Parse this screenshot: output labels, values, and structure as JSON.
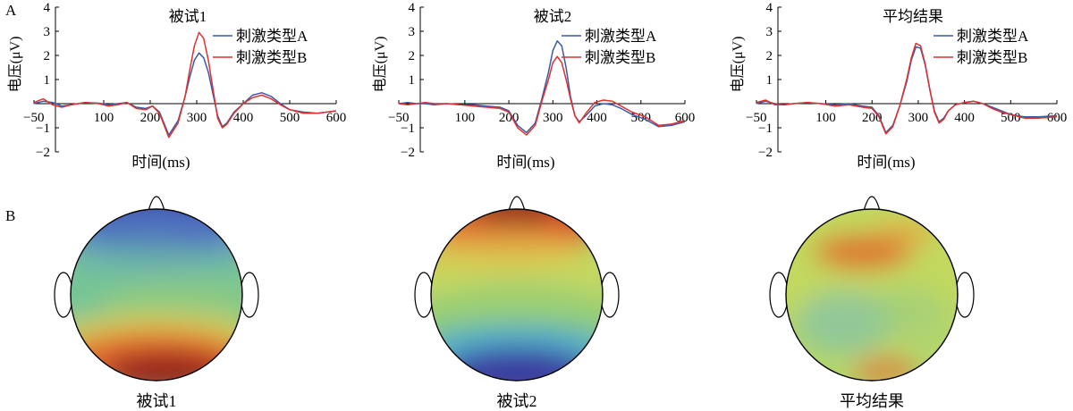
{
  "panels": {
    "a": "A",
    "b": "B"
  },
  "chart_data": [
    {
      "type": "line",
      "title": "被试1",
      "xlabel": "时间(ms)",
      "ylabel": "电压(μV)",
      "xlim": [
        -50,
        600
      ],
      "ylim": [
        -2,
        4
      ],
      "xticks": [
        -50,
        100,
        200,
        300,
        400,
        500,
        600
      ],
      "yticks": [
        -2,
        -1,
        1,
        2,
        3,
        4
      ],
      "legend_position": "top-right",
      "series": [
        {
          "name": "刺激类型A",
          "color": "#3a5aa6",
          "x": [
            -50,
            -30,
            -10,
            10,
            30,
            60,
            90,
            110,
            130,
            150,
            170,
            190,
            205,
            220,
            240,
            260,
            275,
            285,
            295,
            305,
            315,
            325,
            335,
            345,
            355,
            365,
            380,
            400,
            420,
            440,
            460,
            480,
            500,
            530,
            560,
            600
          ],
          "y": [
            0,
            0.1,
            0.05,
            -0.1,
            -0.05,
            0.05,
            0.02,
            -0.05,
            0,
            0.05,
            -0.15,
            -0.2,
            -0.1,
            -0.35,
            -1.3,
            -0.7,
            0.3,
            1.1,
            1.8,
            2.1,
            1.9,
            1.3,
            0.4,
            -0.5,
            -0.95,
            -0.8,
            -0.35,
            0,
            0.35,
            0.45,
            0.3,
            0,
            -0.25,
            -0.35,
            -0.4,
            -0.3
          ]
        },
        {
          "name": "刺激类型B",
          "color": "#e03030",
          "x": [
            -50,
            -30,
            -10,
            10,
            30,
            60,
            90,
            110,
            130,
            150,
            170,
            190,
            205,
            220,
            240,
            260,
            275,
            285,
            295,
            305,
            315,
            325,
            335,
            345,
            355,
            365,
            380,
            400,
            420,
            440,
            460,
            480,
            500,
            530,
            560,
            600
          ],
          "y": [
            0.05,
            0.2,
            -0.05,
            -0.15,
            -0.05,
            0.05,
            0,
            -0.1,
            -0.05,
            0.05,
            -0.2,
            -0.25,
            -0.1,
            -0.4,
            -1.4,
            -0.8,
            0.3,
            1.4,
            2.4,
            2.95,
            2.7,
            1.8,
            0.6,
            -0.6,
            -1.0,
            -0.85,
            -0.4,
            0,
            0.25,
            0.35,
            0.2,
            -0.05,
            -0.25,
            -0.4,
            -0.4,
            -0.3
          ]
        }
      ]
    },
    {
      "type": "line",
      "title": "被试2",
      "xlabel": "时间(ms)",
      "ylabel": "电压(μV)",
      "xlim": [
        -50,
        600
      ],
      "ylim": [
        -2,
        4
      ],
      "xticks": [
        -50,
        100,
        200,
        300,
        400,
        500,
        600
      ],
      "yticks": [
        -2,
        -1,
        1,
        2,
        3,
        4
      ],
      "legend_position": "top-right",
      "series": [
        {
          "name": "刺激类型A",
          "color": "#3a5aa6",
          "x": [
            -50,
            -30,
            -10,
            10,
            30,
            60,
            90,
            120,
            150,
            180,
            200,
            220,
            240,
            260,
            275,
            290,
            300,
            310,
            320,
            330,
            340,
            350,
            360,
            375,
            395,
            415,
            435,
            455,
            480,
            510,
            540,
            570,
            600
          ],
          "y": [
            0,
            0.05,
            0,
            0,
            -0.05,
            0,
            -0.05,
            -0.05,
            -0.1,
            -0.15,
            -0.3,
            -0.9,
            -1.2,
            -0.8,
            0.2,
            1.3,
            2.2,
            2.6,
            2.4,
            1.5,
            0.3,
            -0.5,
            -0.75,
            -0.5,
            -0.1,
            0,
            -0.05,
            -0.2,
            -0.45,
            -0.65,
            -0.95,
            -0.9,
            -0.75
          ]
        },
        {
          "name": "刺激类型B",
          "color": "#e03030",
          "x": [
            -50,
            -30,
            -10,
            10,
            30,
            60,
            90,
            120,
            150,
            180,
            200,
            220,
            240,
            260,
            275,
            290,
            300,
            310,
            320,
            330,
            340,
            350,
            360,
            375,
            395,
            415,
            435,
            455,
            480,
            510,
            540,
            570,
            600
          ],
          "y": [
            0,
            -0.05,
            0,
            0.05,
            0,
            0,
            -0.05,
            -0.1,
            -0.15,
            -0.2,
            -0.35,
            -1.0,
            -1.3,
            -0.9,
            0.1,
            1.0,
            1.7,
            1.95,
            1.7,
            1.0,
            0.2,
            -0.5,
            -0.8,
            -0.4,
            0.05,
            0.15,
            0.1,
            -0.1,
            -0.35,
            -0.55,
            -0.9,
            -0.85,
            -0.7
          ]
        }
      ]
    },
    {
      "type": "line",
      "title": "平均结果",
      "xlabel": "时间(ms)",
      "ylabel": "电压(μV)",
      "xlim": [
        -50,
        600
      ],
      "ylim": [
        -2,
        4
      ],
      "xticks": [
        -50,
        100,
        200,
        300,
        400,
        500,
        600
      ],
      "yticks": [
        -2,
        -1,
        1,
        2,
        3,
        4
      ],
      "legend_position": "top-right",
      "series": [
        {
          "name": "刺激类型A",
          "color": "#3a5aa6",
          "x": [
            -50,
            -30,
            -10,
            10,
            30,
            60,
            90,
            120,
            150,
            180,
            200,
            215,
            230,
            245,
            260,
            275,
            285,
            295,
            305,
            315,
            325,
            335,
            345,
            355,
            365,
            380,
            400,
            420,
            440,
            460,
            480,
            500,
            530,
            560,
            600
          ],
          "y": [
            0,
            0.1,
            0,
            -0.05,
            0,
            0.05,
            0,
            -0.05,
            0,
            -0.1,
            -0.15,
            -0.5,
            -1.2,
            -0.9,
            -0.1,
            0.9,
            1.8,
            2.35,
            2.3,
            1.6,
            0.6,
            -0.3,
            -0.75,
            -0.6,
            -0.3,
            -0.05,
            0.05,
            0.1,
            0,
            -0.15,
            -0.3,
            -0.45,
            -0.55,
            -0.55,
            -0.5
          ]
        },
        {
          "name": "刺激类型B",
          "color": "#e03030",
          "x": [
            -50,
            -30,
            -10,
            10,
            30,
            60,
            90,
            120,
            150,
            180,
            200,
            215,
            230,
            245,
            260,
            275,
            285,
            295,
            305,
            315,
            325,
            335,
            345,
            355,
            365,
            380,
            400,
            420,
            440,
            460,
            480,
            500,
            530,
            560,
            600
          ],
          "y": [
            0.05,
            0.15,
            -0.05,
            -0.05,
            0,
            0.05,
            0,
            -0.1,
            -0.05,
            -0.15,
            -0.2,
            -0.55,
            -1.25,
            -0.95,
            -0.1,
            1.0,
            1.9,
            2.5,
            2.4,
            1.65,
            0.6,
            -0.35,
            -0.8,
            -0.65,
            -0.3,
            -0.05,
            0.05,
            0.1,
            0,
            -0.2,
            -0.35,
            -0.45,
            -0.6,
            -0.6,
            -0.55
          ]
        }
      ]
    }
  ],
  "topomaps": [
    {
      "label": "被试1"
    },
    {
      "label": "被试2"
    },
    {
      "label": "平均结果"
    }
  ]
}
